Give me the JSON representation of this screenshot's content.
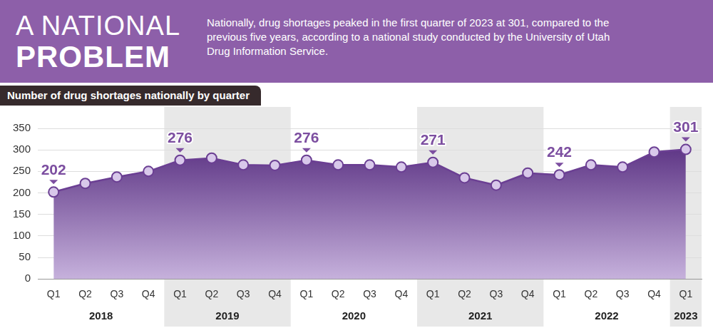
{
  "header": {
    "title": [
      "A NATIONAL",
      "PROBLEM"
    ],
    "text": "Nationally, drug shortages peaked in the first quarter of 2023 at 301, compared to the previous five years, according to a national study conducted by the University of Utah Drug Information Service."
  },
  "chart_data": {
    "type": "area",
    "title": "Number of drug shortages nationally by quarter",
    "categories": [
      "Q1",
      "Q2",
      "Q3",
      "Q4",
      "Q1",
      "Q2",
      "Q3",
      "Q4",
      "Q1",
      "Q2",
      "Q3",
      "Q4",
      "Q1",
      "Q2",
      "Q3",
      "Q4",
      "Q1",
      "Q2",
      "Q3",
      "Q4",
      "Q1"
    ],
    "year_groups": [
      {
        "label": "2018",
        "quarters": 4
      },
      {
        "label": "2019",
        "quarters": 4
      },
      {
        "label": "2020",
        "quarters": 4
      },
      {
        "label": "2021",
        "quarters": 4
      },
      {
        "label": "2022",
        "quarters": 4
      },
      {
        "label": "2023",
        "quarters": 1
      }
    ],
    "values": [
      202,
      222,
      237,
      250,
      276,
      281,
      265,
      264,
      276,
      265,
      265,
      260,
      271,
      235,
      218,
      246,
      242,
      265,
      260,
      295,
      301
    ],
    "value_labels": [
      "202",
      null,
      null,
      null,
      "276",
      null,
      null,
      null,
      "276",
      null,
      null,
      null,
      "271",
      null,
      null,
      null,
      "242",
      null,
      null,
      null,
      "301"
    ],
    "data_labels": true,
    "color": "#6b3f93",
    "marker": "circle",
    "line_style": "solid",
    "ylim": [
      0,
      350
    ],
    "yticks": [
      0,
      50,
      100,
      150,
      200,
      250,
      300,
      350
    ],
    "grid": true
  }
}
